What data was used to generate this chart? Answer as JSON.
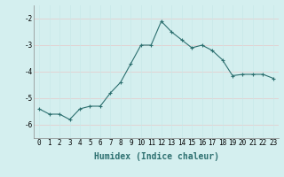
{
  "x": [
    0,
    1,
    2,
    3,
    4,
    5,
    6,
    7,
    8,
    9,
    10,
    11,
    12,
    13,
    14,
    15,
    16,
    17,
    18,
    19,
    20,
    21,
    22,
    23
  ],
  "y": [
    -5.4,
    -5.6,
    -5.6,
    -5.8,
    -5.4,
    -5.3,
    -5.3,
    -4.8,
    -4.4,
    -3.7,
    -3.0,
    -3.0,
    -2.1,
    -2.5,
    -2.8,
    -3.1,
    -3.0,
    -3.2,
    -3.55,
    -4.15,
    -4.1,
    -4.1,
    -4.1,
    -4.25
  ],
  "xlabel": "Humidex (Indice chaleur)",
  "ylim": [
    -6.5,
    -1.5
  ],
  "xlim": [
    -0.5,
    23.5
  ],
  "yticks": [
    -6,
    -5,
    -4,
    -3,
    -2
  ],
  "ytick_labels": [
    "-6",
    "-5",
    "-4",
    "-3",
    "-2"
  ],
  "xticks": [
    0,
    1,
    2,
    3,
    4,
    5,
    6,
    7,
    8,
    9,
    10,
    11,
    12,
    13,
    14,
    15,
    16,
    17,
    18,
    19,
    20,
    21,
    22,
    23
  ],
  "line_color": "#2d7070",
  "marker": "+",
  "bg_color": "#d4efef",
  "grid_color_v": "#c8e8e8",
  "grid_color_h": "#e8c8c8",
  "tick_label_fontsize": 5.5,
  "xlabel_fontsize": 7.0
}
